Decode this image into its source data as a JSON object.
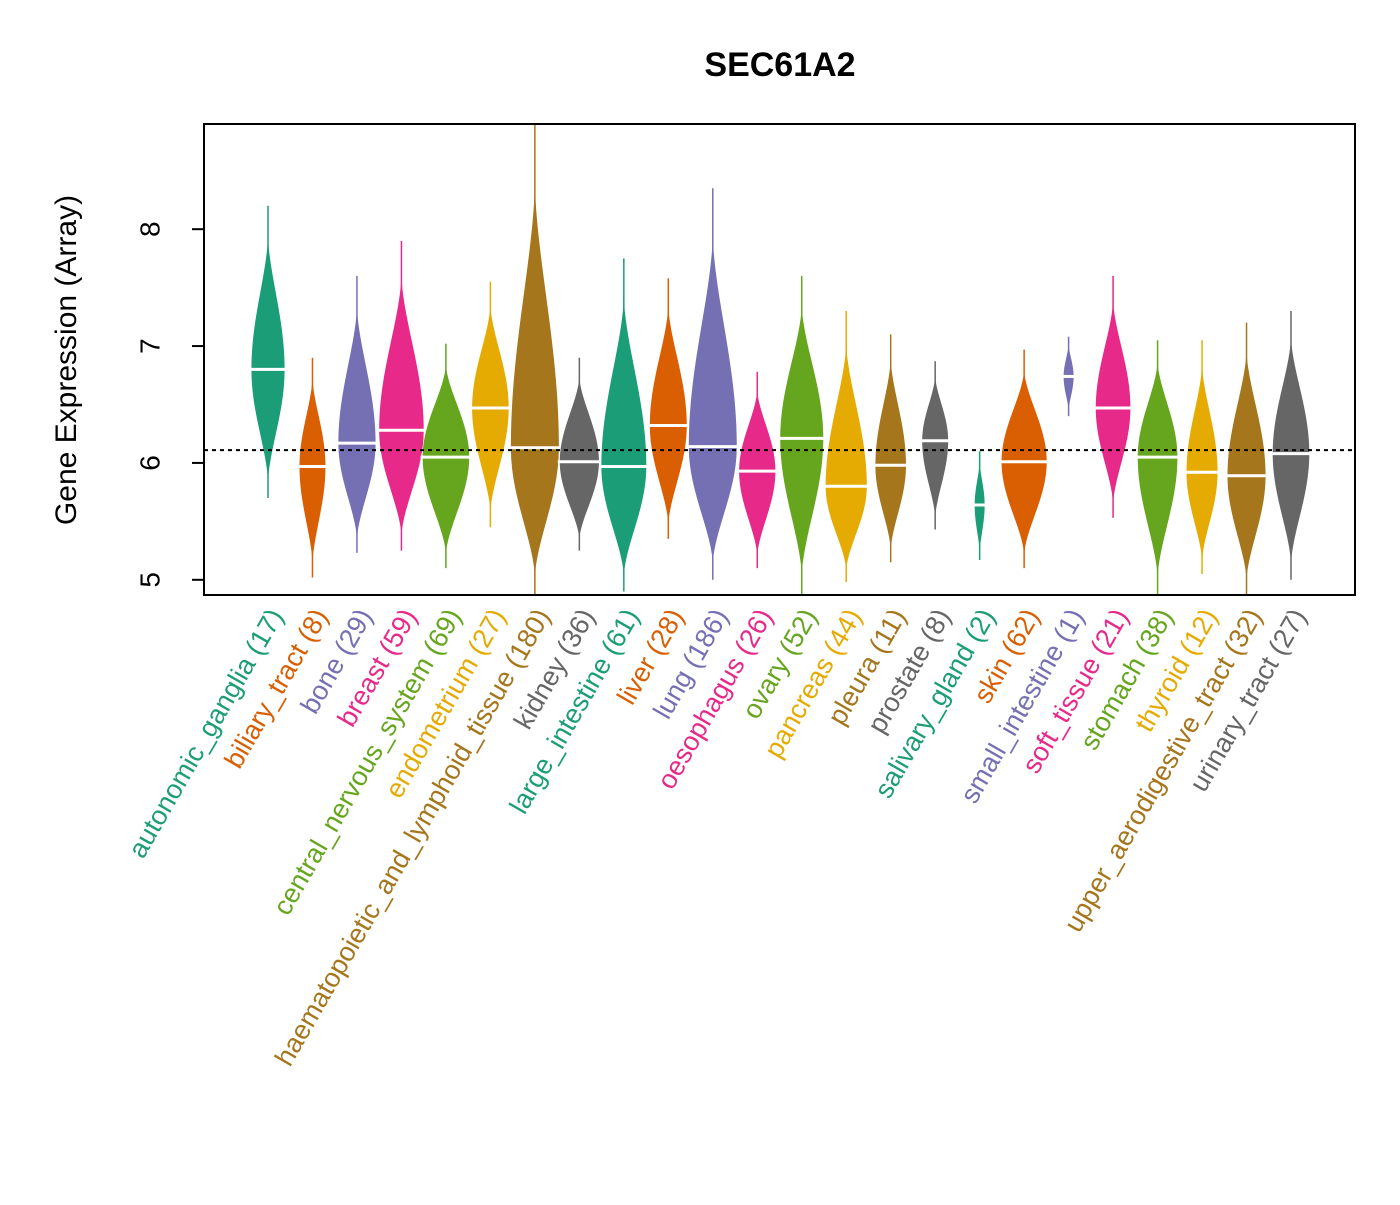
{
  "chart_data": {
    "type": "beanplot",
    "title": "SEC61A2",
    "xlabel": "",
    "ylabel": "Gene Expression (Array)",
    "ylim": [
      4.87,
      8.9
    ],
    "yticks": [
      5,
      6,
      7,
      8
    ],
    "reference_line": 6.11,
    "grid": false,
    "categories": [
      {
        "name": "autonomic_ganglia",
        "n": 17,
        "label": "autonomic_ganglia (17)",
        "color": "#1B9E77",
        "min": 5.7,
        "max": 8.2,
        "median": 6.8
      },
      {
        "name": "biliary_tract",
        "n": 8,
        "label": "biliary_tract (8)",
        "color": "#D95F02",
        "min": 5.02,
        "max": 6.9,
        "median": 5.97
      },
      {
        "name": "bone",
        "n": 29,
        "label": "bone (29)",
        "color": "#7570B3",
        "min": 5.23,
        "max": 7.6,
        "median": 6.17
      },
      {
        "name": "breast",
        "n": 59,
        "label": "breast (59)",
        "color": "#E7298A",
        "min": 5.25,
        "max": 7.9,
        "median": 6.28
      },
      {
        "name": "central_nervous_system",
        "n": 69,
        "label": "central_nervous_system (69)",
        "color": "#66A61E",
        "min": 5.1,
        "max": 7.02,
        "median": 6.05
      },
      {
        "name": "endometrium",
        "n": 27,
        "label": "endometrium (27)",
        "color": "#E6AB02",
        "min": 5.45,
        "max": 7.55,
        "median": 6.47
      },
      {
        "name": "haematopoietic_and_lymphoid_tissue",
        "n": 180,
        "label": "haematopoietic_and_lymphoid_tissue (180)",
        "color": "#A6761D",
        "min": 4.87,
        "max": 8.9,
        "median": 6.13
      },
      {
        "name": "kidney",
        "n": 36,
        "label": "kidney (36)",
        "color": "#666666",
        "min": 5.25,
        "max": 6.9,
        "median": 6.01
      },
      {
        "name": "large_intestine",
        "n": 61,
        "label": "large_intestine (61)",
        "color": "#1B9E77",
        "min": 4.9,
        "max": 7.75,
        "median": 5.97
      },
      {
        "name": "liver",
        "n": 28,
        "label": "liver (28)",
        "color": "#D95F02",
        "min": 5.35,
        "max": 7.58,
        "median": 6.32
      },
      {
        "name": "lung",
        "n": 186,
        "label": "lung (186)",
        "color": "#7570B3",
        "min": 5.0,
        "max": 8.35,
        "median": 6.14
      },
      {
        "name": "oesophagus",
        "n": 26,
        "label": "oesophagus (26)",
        "color": "#E7298A",
        "min": 5.1,
        "max": 6.78,
        "median": 5.93
      },
      {
        "name": "ovary",
        "n": 52,
        "label": "ovary (52)",
        "color": "#66A61E",
        "min": 4.87,
        "max": 7.6,
        "median": 6.21
      },
      {
        "name": "pancreas",
        "n": 44,
        "label": "pancreas (44)",
        "color": "#E6AB02",
        "min": 4.98,
        "max": 7.3,
        "median": 5.8
      },
      {
        "name": "pleura",
        "n": 11,
        "label": "pleura (11)",
        "color": "#A6761D",
        "min": 5.15,
        "max": 7.1,
        "median": 5.98
      },
      {
        "name": "prostate",
        "n": 8,
        "label": "prostate (8)",
        "color": "#666666",
        "min": 5.43,
        "max": 6.87,
        "median": 6.19
      },
      {
        "name": "salivary_gland",
        "n": 2,
        "label": "salivary_gland (2)",
        "color": "#1B9E77",
        "min": 5.17,
        "max": 6.1,
        "median": 5.64
      },
      {
        "name": "skin",
        "n": 62,
        "label": "skin (62)",
        "color": "#D95F02",
        "min": 5.1,
        "max": 6.97,
        "median": 6.01
      },
      {
        "name": "small_intestine",
        "n": 1,
        "label": "small_intestine (1)",
        "color": "#7570B3",
        "min": 6.4,
        "max": 7.08,
        "median": 6.74
      },
      {
        "name": "soft_tissue",
        "n": 21,
        "label": "soft_tissue (21)",
        "color": "#E7298A",
        "min": 5.53,
        "max": 7.6,
        "median": 6.47
      },
      {
        "name": "stomach",
        "n": 38,
        "label": "stomach (38)",
        "color": "#66A61E",
        "min": 4.87,
        "max": 7.05,
        "median": 6.05
      },
      {
        "name": "thyroid",
        "n": 12,
        "label": "thyroid (12)",
        "color": "#E6AB02",
        "min": 5.05,
        "max": 7.05,
        "median": 5.92
      },
      {
        "name": "upper_aerodigestive_tract",
        "n": 32,
        "label": "upper_aerodigestive_tract (32)",
        "color": "#A6761D",
        "min": 4.87,
        "max": 7.2,
        "median": 5.89
      },
      {
        "name": "urinary_tract",
        "n": 27,
        "label": "urinary_tract (27)",
        "color": "#666666",
        "min": 5.0,
        "max": 7.3,
        "median": 6.08
      }
    ]
  }
}
